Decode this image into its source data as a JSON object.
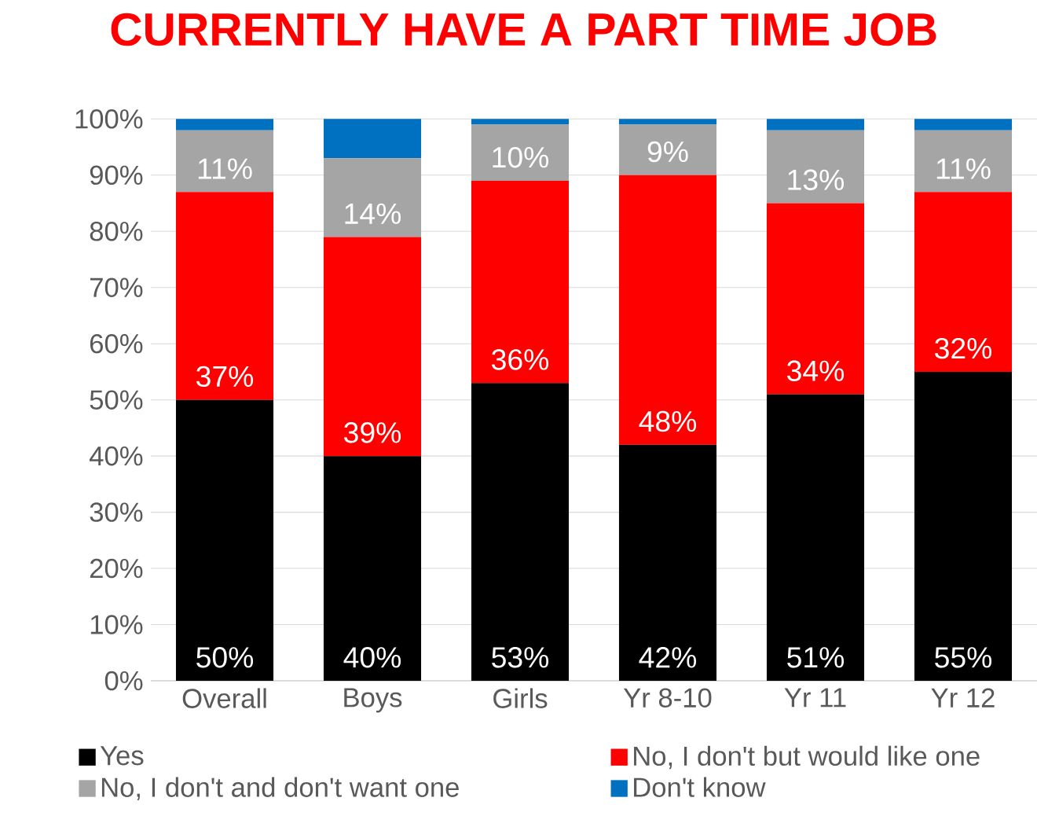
{
  "chart_data": {
    "type": "bar",
    "title": "CURRENTLY HAVE A PART TIME JOB",
    "categories": [
      "Overall",
      "Boys",
      "Girls",
      "Yr 8-10",
      "Yr 11",
      "Yr 12"
    ],
    "stacked": true,
    "series": [
      {
        "name": "Yes",
        "color": "#000000",
        "values": [
          50,
          40,
          53,
          42,
          51,
          55
        ],
        "value_labels": [
          "50%",
          "40%",
          "53%",
          "42%",
          "51%",
          "55%"
        ]
      },
      {
        "name": "No, I don't but would like one",
        "color": "#ff0000",
        "values": [
          37,
          39,
          36,
          48,
          34,
          32
        ],
        "value_labels": [
          "37%",
          "39%",
          "36%",
          "48%",
          "34%",
          "32%"
        ]
      },
      {
        "name": "No, I don't and don't want one",
        "color": "#a5a5a5",
        "values": [
          11,
          14,
          10,
          9,
          13,
          11
        ],
        "value_labels": [
          "11%",
          "14%",
          "10%",
          "9%",
          "13%",
          "11%"
        ]
      },
      {
        "name": "Don't know",
        "color": "#0070c0",
        "values": [
          2,
          7,
          1,
          1,
          2,
          2
        ]
      }
    ],
    "ylim": [
      0,
      100
    ],
    "yticks": [
      {
        "value": 0,
        "label": "0%"
      },
      {
        "value": 10,
        "label": "10%"
      },
      {
        "value": 20,
        "label": "20%"
      },
      {
        "value": 30,
        "label": "30%"
      },
      {
        "value": 40,
        "label": "40%"
      },
      {
        "value": 50,
        "label": "50%"
      },
      {
        "value": 60,
        "label": "60%"
      },
      {
        "value": 70,
        "label": "70%"
      },
      {
        "value": 80,
        "label": "80%"
      },
      {
        "value": 90,
        "label": "90%"
      },
      {
        "value": 100,
        "label": "100%"
      }
    ],
    "grid": "y",
    "legend": "bottom"
  }
}
